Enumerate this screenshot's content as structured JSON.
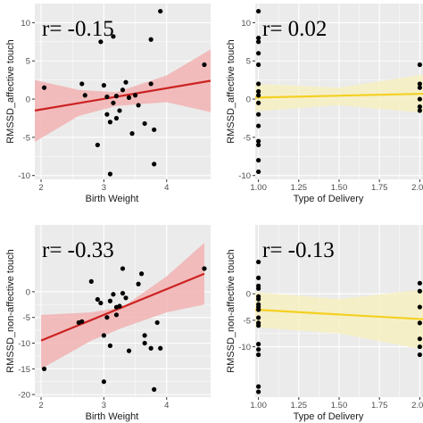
{
  "colors": {
    "panel_bg": "#ebebeb",
    "grid": "#ffffff",
    "point": "#000000",
    "red_line": "#cc2222",
    "red_band": "#f2b3b3",
    "yellow_line": "#f4d020",
    "yellow_band": "#f7f0c2"
  },
  "chart_data": [
    {
      "type": "scatter",
      "r_label": "r= -0.15",
      "xlabel": "Birth Weight",
      "ylabel": "RMSSD_affective touch",
      "xlim": [
        1.9,
        4.7
      ],
      "ylim": [
        -10.5,
        12.5
      ],
      "x_ticks": [
        2,
        3,
        4
      ],
      "x_tick_labels": [
        "2",
        "3",
        "4"
      ],
      "y_ticks": [
        -10,
        -5,
        0,
        5,
        10
      ],
      "y_tick_labels": [
        "-10",
        "-5",
        "0",
        "5",
        "10"
      ],
      "fit": "red",
      "fit_line": [
        [
          1.9,
          -1.5
        ],
        [
          4.7,
          2.4
        ]
      ],
      "band_upper": [
        [
          1.9,
          2.5
        ],
        [
          2.6,
          1.2
        ],
        [
          3.2,
          0.9
        ],
        [
          4.0,
          3.1
        ],
        [
          4.7,
          6.5
        ]
      ],
      "band_lower": [
        [
          1.9,
          -5.6
        ],
        [
          2.6,
          -2.2
        ],
        [
          3.2,
          -0.9
        ],
        [
          4.0,
          -0.4
        ],
        [
          4.7,
          -1.7
        ]
      ],
      "points": [
        {
          "x": 2.05,
          "y": 1.5
        },
        {
          "x": 2.65,
          "y": 2.0
        },
        {
          "x": 2.7,
          "y": 0.5
        },
        {
          "x": 2.9,
          "y": -6.0
        },
        {
          "x": 2.95,
          "y": 7.5
        },
        {
          "x": 3.0,
          "y": 1.8
        },
        {
          "x": 3.05,
          "y": 0.3
        },
        {
          "x": 3.05,
          "y": -2.0
        },
        {
          "x": 3.1,
          "y": -3.0
        },
        {
          "x": 3.1,
          "y": -9.8
        },
        {
          "x": 3.15,
          "y": 8.2
        },
        {
          "x": 3.15,
          "y": -0.5
        },
        {
          "x": 3.2,
          "y": 0.4
        },
        {
          "x": 3.2,
          "y": -2.5
        },
        {
          "x": 3.25,
          "y": -1.5
        },
        {
          "x": 3.3,
          "y": 1.2
        },
        {
          "x": 3.35,
          "y": 2.2
        },
        {
          "x": 3.4,
          "y": 0.2
        },
        {
          "x": 3.45,
          "y": -4.5
        },
        {
          "x": 3.5,
          "y": 0.5
        },
        {
          "x": 3.55,
          "y": -0.8
        },
        {
          "x": 3.65,
          "y": -3.2
        },
        {
          "x": 3.75,
          "y": 7.8
        },
        {
          "x": 3.75,
          "y": 2.0
        },
        {
          "x": 3.8,
          "y": -8.5
        },
        {
          "x": 3.8,
          "y": -4.0
        },
        {
          "x": 3.9,
          "y": 11.5
        },
        {
          "x": 4.6,
          "y": 4.5
        }
      ]
    },
    {
      "type": "scatter",
      "r_label": "r= 0.02",
      "xlabel": "Type of Delivery",
      "ylabel": "RMSSD_affective touch",
      "xlim": [
        0.98,
        2.02
      ],
      "ylim": [
        -10.5,
        12.5
      ],
      "x_ticks": [
        1.0,
        1.25,
        1.5,
        1.75,
        2.0
      ],
      "x_tick_labels": [
        "1.00",
        "1.25",
        "1.50",
        "1.75",
        "2.00"
      ],
      "y_ticks": [
        -10,
        -5,
        0,
        5,
        10
      ],
      "y_tick_labels": [
        "-10",
        "-5",
        "0",
        "5",
        "10"
      ],
      "fit": "yellow",
      "fit_line": [
        [
          0.98,
          0.2
        ],
        [
          2.02,
          0.7
        ]
      ],
      "band_upper": [
        [
          0.98,
          2.0
        ],
        [
          1.5,
          1.5
        ],
        [
          2.02,
          3.2
        ]
      ],
      "band_lower": [
        [
          0.98,
          -1.6
        ],
        [
          1.5,
          -0.8
        ],
        [
          2.02,
          -1.8
        ]
      ],
      "points": [
        {
          "x": 1.0,
          "y": 11.5
        },
        {
          "x": 1.0,
          "y": 8.0
        },
        {
          "x": 1.0,
          "y": 7.5
        },
        {
          "x": 1.0,
          "y": 6.0
        },
        {
          "x": 1.0,
          "y": 4.5
        },
        {
          "x": 1.0,
          "y": 2.0
        },
        {
          "x": 1.0,
          "y": 1.0
        },
        {
          "x": 1.0,
          "y": 0.5
        },
        {
          "x": 1.0,
          "y": -0.5
        },
        {
          "x": 1.0,
          "y": -2.0
        },
        {
          "x": 1.0,
          "y": -3.5
        },
        {
          "x": 1.0,
          "y": -5.5
        },
        {
          "x": 1.0,
          "y": -6.0
        },
        {
          "x": 1.0,
          "y": -8.0
        },
        {
          "x": 1.0,
          "y": -9.5
        },
        {
          "x": 2.0,
          "y": 4.5
        },
        {
          "x": 2.0,
          "y": 2.0
        },
        {
          "x": 2.0,
          "y": 1.5
        },
        {
          "x": 2.0,
          "y": 0.0
        },
        {
          "x": 2.0,
          "y": -1.0
        },
        {
          "x": 2.0,
          "y": -1.5
        }
      ]
    },
    {
      "type": "scatter",
      "r_label": "r= -0.33",
      "xlabel": "Birth Weight",
      "ylabel": "RMSSD_non-affective touch",
      "xlim": [
        1.9,
        4.7
      ],
      "ylim": [
        -20.5,
        13
      ],
      "x_ticks": [
        2,
        3,
        4
      ],
      "x_tick_labels": [
        "2",
        "3",
        "4"
      ],
      "y_ticks": [
        -20,
        -15,
        -10,
        -5,
        0
      ],
      "y_tick_labels": [
        "-20",
        "-15",
        "-10",
        "-5",
        "0"
      ],
      "fit": "red",
      "fit_line": [
        [
          2.0,
          -9.5
        ],
        [
          4.6,
          3.5
        ]
      ],
      "band_upper": [
        [
          2.0,
          -4.5
        ],
        [
          2.8,
          -4.0
        ],
        [
          3.3,
          -3.0
        ],
        [
          4.0,
          3.0
        ],
        [
          4.6,
          9.5
        ]
      ],
      "band_lower": [
        [
          2.0,
          -15.0
        ],
        [
          2.8,
          -9.5
        ],
        [
          3.3,
          -7.0
        ],
        [
          4.0,
          -4.0
        ],
        [
          4.6,
          -2.5
        ]
      ],
      "points": [
        {
          "x": 2.05,
          "y": -15.0
        },
        {
          "x": 2.6,
          "y": -6.0
        },
        {
          "x": 2.65,
          "y": -5.8
        },
        {
          "x": 2.8,
          "y": 2.0
        },
        {
          "x": 2.9,
          "y": -1.5
        },
        {
          "x": 2.95,
          "y": -2.2
        },
        {
          "x": 3.0,
          "y": -8.5
        },
        {
          "x": 3.0,
          "y": -17.5
        },
        {
          "x": 3.05,
          "y": -5.0
        },
        {
          "x": 3.1,
          "y": -1.8
        },
        {
          "x": 3.1,
          "y": -10.5
        },
        {
          "x": 3.15,
          "y": -0.5
        },
        {
          "x": 3.2,
          "y": -3.0
        },
        {
          "x": 3.2,
          "y": -4.5
        },
        {
          "x": 3.25,
          "y": -2.8
        },
        {
          "x": 3.3,
          "y": 4.5
        },
        {
          "x": 3.3,
          "y": -0.3
        },
        {
          "x": 3.35,
          "y": -1.2
        },
        {
          "x": 3.4,
          "y": -11.5
        },
        {
          "x": 3.55,
          "y": 1.5
        },
        {
          "x": 3.6,
          "y": 3.5
        },
        {
          "x": 3.65,
          "y": -8.5
        },
        {
          "x": 3.65,
          "y": -10.0
        },
        {
          "x": 3.75,
          "y": -11.0
        },
        {
          "x": 3.8,
          "y": -19.0
        },
        {
          "x": 3.85,
          "y": -6.0
        },
        {
          "x": 3.9,
          "y": -11.0
        },
        {
          "x": 4.6,
          "y": 4.5
        }
      ]
    },
    {
      "type": "scatter",
      "r_label": "r= -0.13",
      "xlabel": "Type of Delivery",
      "ylabel": "RMSSD_non-affective touch",
      "xlim": [
        0.98,
        2.02
      ],
      "ylim": [
        -19.5,
        13
      ],
      "x_ticks": [
        1.0,
        1.25,
        1.5,
        1.75,
        2.0
      ],
      "x_tick_labels": [
        "1.00",
        "1.25",
        "1.50",
        "1.75",
        "2.00"
      ],
      "y_ticks": [
        -10,
        -5,
        0
      ],
      "y_tick_labels": [
        "-10",
        "-5",
        "0"
      ],
      "fit": "yellow",
      "fit_line": [
        [
          0.98,
          -3.0
        ],
        [
          2.02,
          -4.8
        ]
      ],
      "band_upper": [
        [
          0.98,
          0.3
        ],
        [
          1.5,
          -1.0
        ],
        [
          2.02,
          0.8
        ]
      ],
      "band_lower": [
        [
          0.98,
          -6.3
        ],
        [
          1.5,
          -7.5
        ],
        [
          2.02,
          -10.5
        ]
      ],
      "points": [
        {
          "x": 1.0,
          "y": 6.0
        },
        {
          "x": 1.0,
          "y": 3.0
        },
        {
          "x": 1.0,
          "y": 1.5
        },
        {
          "x": 1.0,
          "y": 1.0
        },
        {
          "x": 1.0,
          "y": -0.5
        },
        {
          "x": 1.0,
          "y": -1.0
        },
        {
          "x": 1.0,
          "y": -2.0
        },
        {
          "x": 1.0,
          "y": -2.5
        },
        {
          "x": 1.0,
          "y": -3.0
        },
        {
          "x": 1.0,
          "y": -4.5
        },
        {
          "x": 1.0,
          "y": -5.5
        },
        {
          "x": 1.0,
          "y": -6.0
        },
        {
          "x": 1.0,
          "y": -9.5
        },
        {
          "x": 1.0,
          "y": -10.5
        },
        {
          "x": 1.0,
          "y": -11.5
        },
        {
          "x": 1.0,
          "y": -17.5
        },
        {
          "x": 1.0,
          "y": -18.5
        },
        {
          "x": 2.0,
          "y": 2.0
        },
        {
          "x": 2.0,
          "y": 0.5
        },
        {
          "x": 2.0,
          "y": -2.5
        },
        {
          "x": 2.0,
          "y": -5.5
        },
        {
          "x": 2.0,
          "y": -8.5
        },
        {
          "x": 2.0,
          "y": -10.0
        },
        {
          "x": 2.0,
          "y": -11.5
        }
      ]
    }
  ]
}
